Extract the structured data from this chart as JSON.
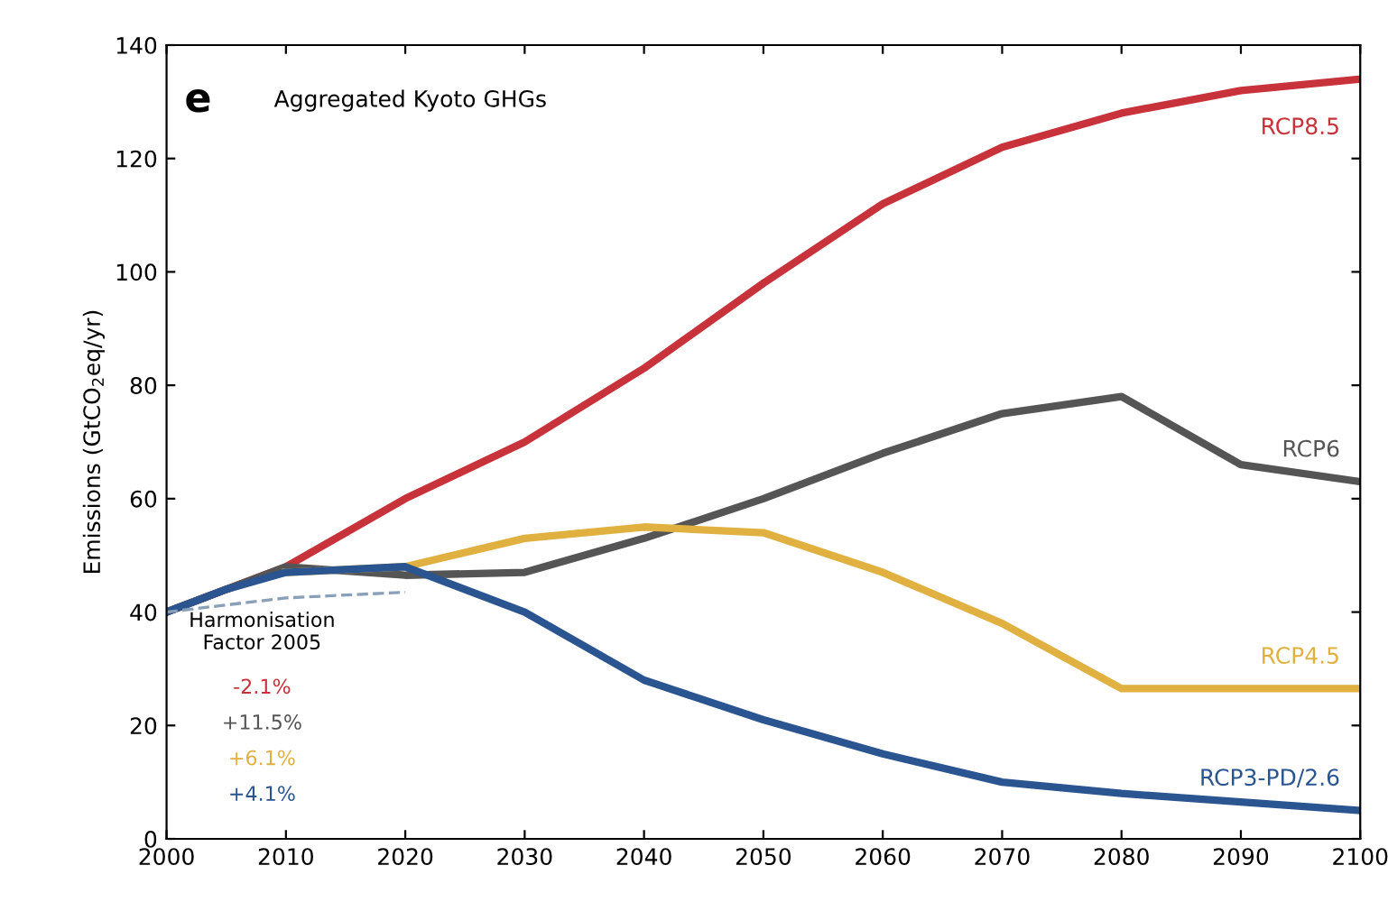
{
  "chart_data": {
    "type": "line",
    "title": "Aggregated Kyoto GHGs",
    "ylabel": "Emissions (GtCO$_{2}$eq/yr)",
    "x": [
      2000,
      2005,
      2010,
      2020,
      2030,
      2040,
      2050,
      2060,
      2070,
      2080,
      2090,
      2100
    ],
    "series": [
      {
        "name": "RCP8.5",
        "color": "#c8323a",
        "values": [
          40,
          44,
          48,
          60,
          70,
          83,
          98,
          112,
          122,
          128,
          132,
          134
        ]
      },
      {
        "name": "RCP6",
        "color": "#555555",
        "values": [
          40,
          44,
          48,
          46.5,
          47,
          53,
          60,
          68,
          75,
          78,
          66,
          63
        ]
      },
      {
        "name": "RCP4.5",
        "color": "#e0b040",
        "values": [
          null,
          null,
          47,
          48,
          53,
          55,
          54,
          47,
          38,
          26.5,
          26.5,
          26.5
        ]
      },
      {
        "name": "RCP3-PD/2.6",
        "color": "#2a5590",
        "values": [
          40,
          44,
          47,
          48,
          40,
          28,
          21,
          15,
          10,
          8,
          6.5,
          5
        ]
      },
      {
        "color": "#8aa0b8",
        "line_style": "dashed",
        "x": [
          2000,
          2010,
          2020
        ],
        "values": [
          40,
          42.5,
          43.5
        ]
      }
    ],
    "annotations": [
      "e",
      "Harmonisation\nFactor 2005",
      "-2.1%",
      "+11.5%",
      "+6.1%",
      "+4.1%"
    ],
    "xlim": [
      2000,
      2100
    ],
    "xticks": [
      2000,
      2010,
      2020,
      2030,
      2040,
      2050,
      2060,
      2070,
      2080,
      2090,
      2100
    ],
    "ylim": [
      0,
      140
    ],
    "yticks": [
      0,
      20,
      40,
      60,
      80,
      100,
      120,
      140
    ],
    "grid": false,
    "legend": false
  }
}
